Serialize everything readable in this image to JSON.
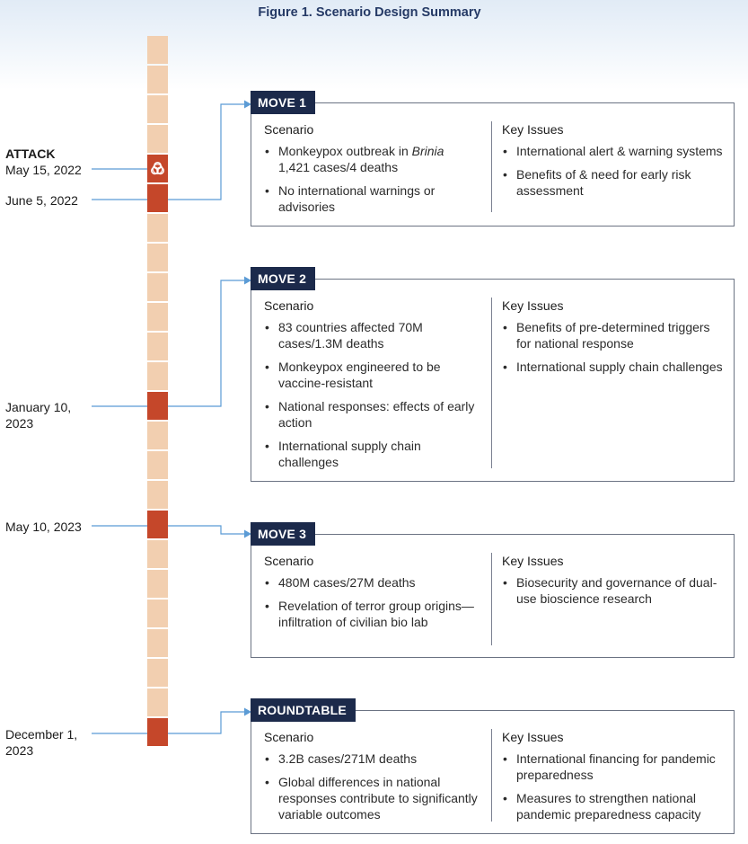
{
  "figure_title": "Figure 1. Scenario Design Summary",
  "colors": {
    "timeline_segment": "#f2cfb0",
    "timeline_highlight": "#c5472a",
    "tab_background": "#1c2a4b",
    "connector": "#5b9bd5"
  },
  "icons": {
    "attack": "biohazard-icon"
  },
  "timeline": {
    "attack_label": "ATTACK",
    "dates": [
      {
        "line1": "May 15, 2022"
      },
      {
        "line1": "June 5, 2022"
      },
      {
        "line1": "January 10,",
        "line2": "2023"
      },
      {
        "line1": "May 10, 2023"
      },
      {
        "line1": "December 1,",
        "line2": "2023"
      }
    ]
  },
  "moves": [
    {
      "title": "MOVE 1",
      "scenario_heading": "Scenario",
      "issues_heading": "Key Issues",
      "scenario": [
        "Monkeypox outbreak in Brinia 1,421 cases/4 deaths",
        "No international warnings or advisories"
      ],
      "issues": [
        "International alert & warning systems",
        "Benefits of & need for early risk assessment"
      ]
    },
    {
      "title": "MOVE 2",
      "scenario_heading": "Scenario",
      "issues_heading": "Key Issues",
      "scenario": [
        "83 countries affected 70M cases/1.3M deaths",
        "Monkeypox engineered to be vaccine-resistant",
        "National responses: effects of early action",
        "International supply chain challenges"
      ],
      "issues": [
        "Benefits of pre-determined triggers for national response",
        "International supply chain challenges"
      ]
    },
    {
      "title": "MOVE 3",
      "scenario_heading": "Scenario",
      "issues_heading": "Key Issues",
      "scenario": [
        "480M cases/27M deaths",
        "Revelation of terror group origins—infiltration of civilian bio lab"
      ],
      "issues": [
        "Biosecurity and governance of dual-use bioscience research"
      ]
    },
    {
      "title": "ROUNDTABLE",
      "scenario_heading": "Scenario",
      "issues_heading": "Key Issues",
      "scenario": [
        "3.2B cases/271M deaths",
        "Global differences in national responses contribute to significantly variable outcomes"
      ],
      "issues": [
        "International financing for pandemic preparedness",
        "Measures to strengthen national pandemic preparedness capacity"
      ]
    }
  ]
}
